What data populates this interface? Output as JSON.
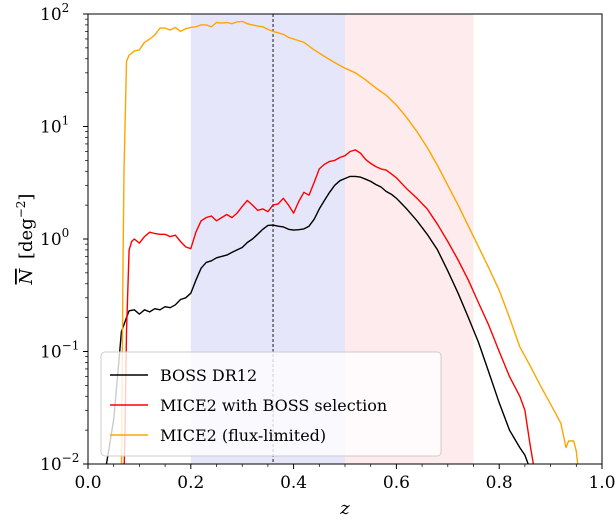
{
  "chart_data": {
    "type": "line",
    "title": "",
    "xlabel": "z",
    "ylabel": {
      "base": "N",
      "unit_open": "[deg",
      "unit_exp": "−2",
      "unit_close": "]"
    },
    "xlim": [
      0.0,
      1.0
    ],
    "ylim": [
      0.01,
      100
    ],
    "yscale": "log",
    "grid": false,
    "legend_position": "lower-left",
    "x_ticks": [
      "0.0",
      "0.2",
      "0.4",
      "0.6",
      "0.8",
      "1.0"
    ],
    "y_ticks": [
      {
        "base": "10",
        "exp": "−2",
        "value": 0.01
      },
      {
        "base": "10",
        "exp": "−1",
        "value": 0.1
      },
      {
        "base": "10",
        "exp": "0",
        "value": 1
      },
      {
        "base": "10",
        "exp": "1",
        "value": 10
      },
      {
        "base": "10",
        "exp": "2",
        "value": 100
      }
    ],
    "shaded_regions": [
      {
        "x0": 0.2,
        "x1": 0.5,
        "color": "#e6e6fa"
      },
      {
        "x0": 0.5,
        "x1": 0.75,
        "color": "#fdebed"
      }
    ],
    "reference_line": {
      "x": 0.36,
      "style": "dashed",
      "color": "#000000"
    },
    "series": [
      {
        "name": "BOSS DR12",
        "color": "#000000",
        "points": [
          [
            0.03,
            0.008
          ],
          [
            0.035,
            0.0095
          ],
          [
            0.04,
            0.013
          ],
          [
            0.05,
            0.025
          ],
          [
            0.06,
            0.08
          ],
          [
            0.065,
            0.15
          ],
          [
            0.075,
            0.2
          ],
          [
            0.08,
            0.23
          ],
          [
            0.09,
            0.235
          ],
          [
            0.1,
            0.215
          ],
          [
            0.11,
            0.235
          ],
          [
            0.12,
            0.225
          ],
          [
            0.13,
            0.24
          ],
          [
            0.14,
            0.235
          ],
          [
            0.15,
            0.25
          ],
          [
            0.16,
            0.245
          ],
          [
            0.17,
            0.26
          ],
          [
            0.18,
            0.29
          ],
          [
            0.19,
            0.3
          ],
          [
            0.2,
            0.33
          ],
          [
            0.21,
            0.43
          ],
          [
            0.22,
            0.55
          ],
          [
            0.23,
            0.62
          ],
          [
            0.24,
            0.64
          ],
          [
            0.25,
            0.68
          ],
          [
            0.26,
            0.7
          ],
          [
            0.27,
            0.72
          ],
          [
            0.28,
            0.76
          ],
          [
            0.29,
            0.8
          ],
          [
            0.3,
            0.84
          ],
          [
            0.31,
            0.93
          ],
          [
            0.32,
            1.0
          ],
          [
            0.33,
            1.1
          ],
          [
            0.34,
            1.22
          ],
          [
            0.35,
            1.32
          ],
          [
            0.36,
            1.33
          ],
          [
            0.37,
            1.3
          ],
          [
            0.38,
            1.28
          ],
          [
            0.39,
            1.22
          ],
          [
            0.4,
            1.2
          ],
          [
            0.41,
            1.21
          ],
          [
            0.42,
            1.23
          ],
          [
            0.43,
            1.3
          ],
          [
            0.44,
            1.5
          ],
          [
            0.45,
            1.85
          ],
          [
            0.46,
            2.2
          ],
          [
            0.47,
            2.6
          ],
          [
            0.48,
            3.0
          ],
          [
            0.49,
            3.3
          ],
          [
            0.5,
            3.45
          ],
          [
            0.51,
            3.6
          ],
          [
            0.52,
            3.6
          ],
          [
            0.53,
            3.55
          ],
          [
            0.54,
            3.4
          ],
          [
            0.55,
            3.25
          ],
          [
            0.56,
            3.05
          ],
          [
            0.57,
            2.9
          ],
          [
            0.58,
            2.65
          ],
          [
            0.59,
            2.5
          ],
          [
            0.6,
            2.3
          ],
          [
            0.62,
            1.85
          ],
          [
            0.64,
            1.45
          ],
          [
            0.66,
            1.1
          ],
          [
            0.68,
            0.8
          ],
          [
            0.7,
            0.52
          ],
          [
            0.72,
            0.33
          ],
          [
            0.74,
            0.2
          ],
          [
            0.76,
            0.12
          ],
          [
            0.78,
            0.065
          ],
          [
            0.8,
            0.035
          ],
          [
            0.82,
            0.02
          ],
          [
            0.84,
            0.014
          ],
          [
            0.85,
            0.012
          ],
          [
            0.86,
            0.009
          ]
        ]
      },
      {
        "name": "MICE2 with BOSS selection",
        "color": "#ff0000",
        "points": [
          [
            0.07,
            0.008
          ],
          [
            0.072,
            0.02
          ],
          [
            0.075,
            0.15
          ],
          [
            0.08,
            0.8
          ],
          [
            0.085,
            0.95
          ],
          [
            0.09,
            1.0
          ],
          [
            0.1,
            0.92
          ],
          [
            0.11,
            1.05
          ],
          [
            0.12,
            1.15
          ],
          [
            0.13,
            1.12
          ],
          [
            0.14,
            1.1
          ],
          [
            0.15,
            1.1
          ],
          [
            0.16,
            1.05
          ],
          [
            0.17,
            1.08
          ],
          [
            0.18,
            0.95
          ],
          [
            0.19,
            0.85
          ],
          [
            0.2,
            0.82
          ],
          [
            0.21,
            1.15
          ],
          [
            0.22,
            1.45
          ],
          [
            0.23,
            1.55
          ],
          [
            0.24,
            1.6
          ],
          [
            0.25,
            1.45
          ],
          [
            0.26,
            1.55
          ],
          [
            0.27,
            1.65
          ],
          [
            0.28,
            1.55
          ],
          [
            0.29,
            1.7
          ],
          [
            0.3,
            1.95
          ],
          [
            0.31,
            2.2
          ],
          [
            0.32,
            2.0
          ],
          [
            0.33,
            1.8
          ],
          [
            0.34,
            1.85
          ],
          [
            0.35,
            1.75
          ],
          [
            0.36,
            2.0
          ],
          [
            0.37,
            2.05
          ],
          [
            0.38,
            2.3
          ],
          [
            0.39,
            2.0
          ],
          [
            0.4,
            1.7
          ],
          [
            0.41,
            2.15
          ],
          [
            0.42,
            2.6
          ],
          [
            0.43,
            2.45
          ],
          [
            0.44,
            3.2
          ],
          [
            0.45,
            4.2
          ],
          [
            0.46,
            4.6
          ],
          [
            0.47,
            4.9
          ],
          [
            0.48,
            5.0
          ],
          [
            0.49,
            5.3
          ],
          [
            0.5,
            5.5
          ],
          [
            0.51,
            6.0
          ],
          [
            0.52,
            6.2
          ],
          [
            0.53,
            5.8
          ],
          [
            0.54,
            5.1
          ],
          [
            0.55,
            4.7
          ],
          [
            0.56,
            4.4
          ],
          [
            0.57,
            4.2
          ],
          [
            0.58,
            4.1
          ],
          [
            0.59,
            3.8
          ],
          [
            0.6,
            3.5
          ],
          [
            0.62,
            2.8
          ],
          [
            0.64,
            2.3
          ],
          [
            0.66,
            1.85
          ],
          [
            0.68,
            1.35
          ],
          [
            0.7,
            0.95
          ],
          [
            0.72,
            0.65
          ],
          [
            0.74,
            0.43
          ],
          [
            0.76,
            0.27
          ],
          [
            0.78,
            0.17
          ],
          [
            0.8,
            0.1
          ],
          [
            0.82,
            0.06
          ],
          [
            0.84,
            0.04
          ],
          [
            0.85,
            0.03
          ],
          [
            0.86,
            0.015
          ],
          [
            0.87,
            0.008
          ]
        ]
      },
      {
        "name": "MICE2 (flux-limited)",
        "color": "#ffa500",
        "points": [
          [
            0.065,
            0.008
          ],
          [
            0.068,
            0.6
          ],
          [
            0.07,
            4.0
          ],
          [
            0.075,
            38
          ],
          [
            0.08,
            43
          ],
          [
            0.09,
            47
          ],
          [
            0.1,
            48
          ],
          [
            0.11,
            56
          ],
          [
            0.12,
            60
          ],
          [
            0.13,
            65
          ],
          [
            0.14,
            75
          ],
          [
            0.15,
            75
          ],
          [
            0.16,
            72
          ],
          [
            0.17,
            76
          ],
          [
            0.18,
            70
          ],
          [
            0.19,
            74
          ],
          [
            0.2,
            76
          ],
          [
            0.21,
            77
          ],
          [
            0.22,
            80
          ],
          [
            0.23,
            80
          ],
          [
            0.24,
            77
          ],
          [
            0.25,
            84
          ],
          [
            0.26,
            83
          ],
          [
            0.27,
            84
          ],
          [
            0.28,
            82
          ],
          [
            0.29,
            85
          ],
          [
            0.3,
            86
          ],
          [
            0.31,
            82
          ],
          [
            0.32,
            80
          ],
          [
            0.33,
            78
          ],
          [
            0.34,
            77
          ],
          [
            0.35,
            73
          ],
          [
            0.36,
            70
          ],
          [
            0.37,
            68
          ],
          [
            0.38,
            66
          ],
          [
            0.39,
            62
          ],
          [
            0.4,
            60
          ],
          [
            0.42,
            56
          ],
          [
            0.44,
            48
          ],
          [
            0.46,
            42
          ],
          [
            0.48,
            37
          ],
          [
            0.5,
            33
          ],
          [
            0.52,
            30
          ],
          [
            0.54,
            26
          ],
          [
            0.56,
            22
          ],
          [
            0.58,
            19
          ],
          [
            0.6,
            15.5
          ],
          [
            0.62,
            12
          ],
          [
            0.64,
            9
          ],
          [
            0.66,
            6.5
          ],
          [
            0.68,
            4.5
          ],
          [
            0.7,
            3.0
          ],
          [
            0.72,
            2.0
          ],
          [
            0.74,
            1.3
          ],
          [
            0.76,
            0.85
          ],
          [
            0.78,
            0.55
          ],
          [
            0.8,
            0.35
          ],
          [
            0.82,
            0.2
          ],
          [
            0.84,
            0.11
          ],
          [
            0.86,
            0.075
          ],
          [
            0.88,
            0.05
          ],
          [
            0.9,
            0.034
          ],
          [
            0.92,
            0.023
          ],
          [
            0.93,
            0.014
          ],
          [
            0.935,
            0.016
          ],
          [
            0.945,
            0.016
          ],
          [
            0.95,
            0.013
          ],
          [
            0.955,
            0.008
          ]
        ]
      }
    ]
  }
}
